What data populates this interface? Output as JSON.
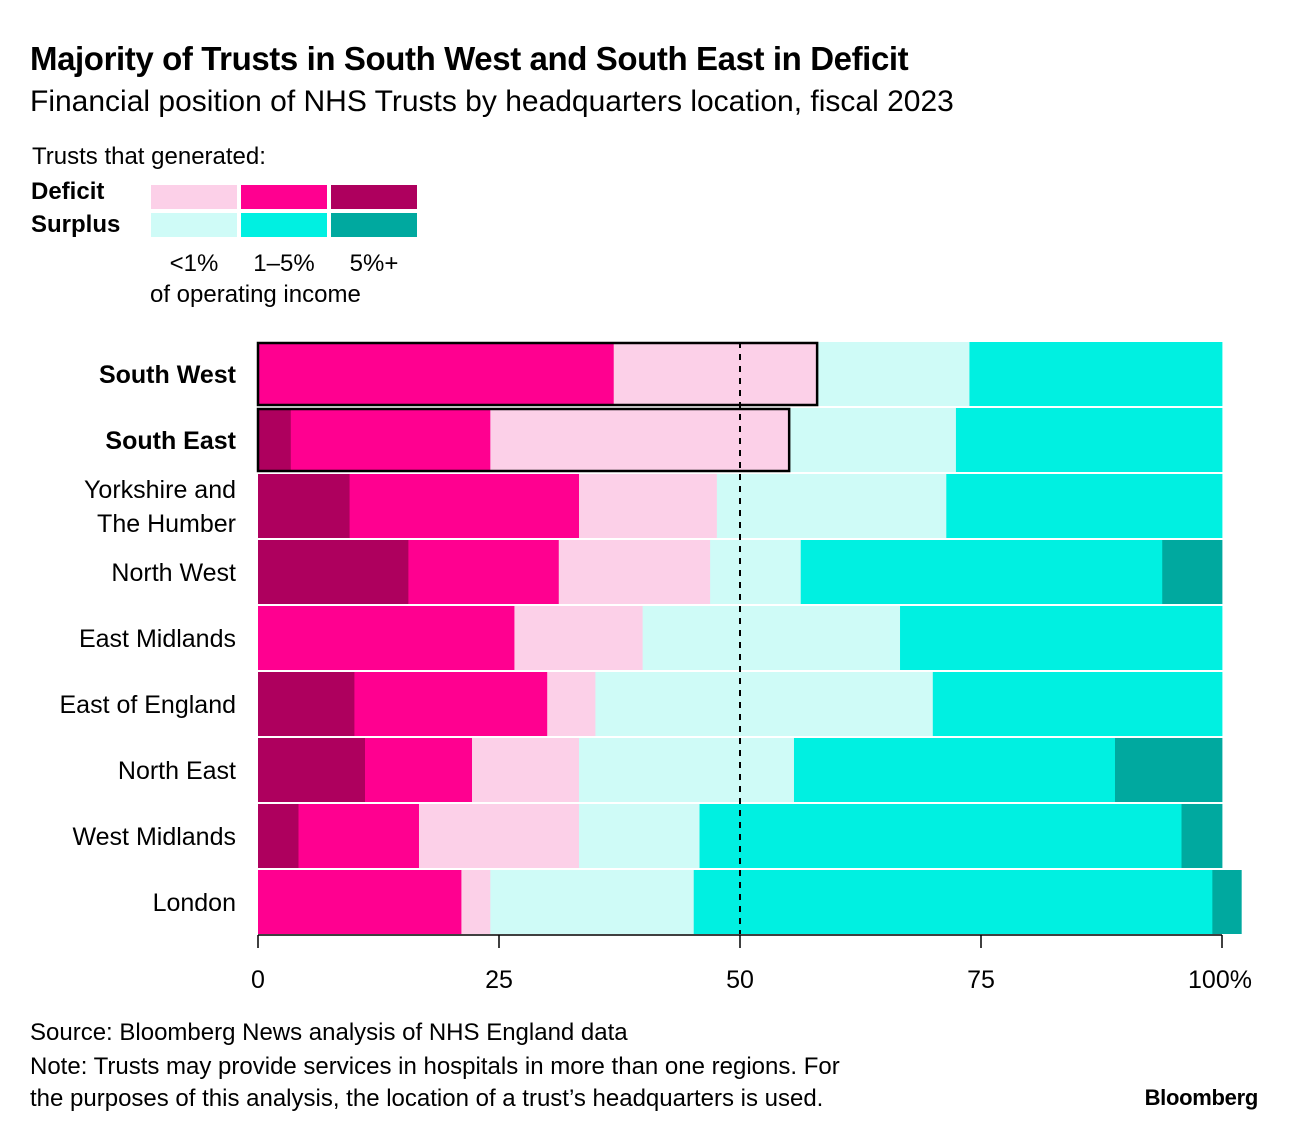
{
  "colors": {
    "deficit_lt1": "#FCD0E8",
    "deficit_1to5": "#FF0090",
    "deficit_5plus": "#AE005E",
    "surplus_lt1": "#CFFBF7",
    "surplus_1to5": "#00F0E1",
    "surplus_5plus": "#00A99F",
    "axis": "#000000"
  },
  "legend": {
    "heading": "Trusts that generated:",
    "deficit_label": "Deficit",
    "surplus_label": "Surplus",
    "ticks": [
      "<1%",
      "1–5%",
      "5%+"
    ],
    "unit": "of operating income"
  },
  "chart_data": {
    "type": "bar",
    "orientation": "horizontal",
    "stacked": true,
    "title": "Majority of Trusts in South West and South East in Deficit",
    "subtitle": "Financial position of NHS Trusts by headquarters location, fiscal 2023",
    "xlabel": "",
    "ylabel": "",
    "xlim": [
      0,
      100
    ],
    "x_ticks": [
      0,
      25,
      50,
      75,
      100
    ],
    "x_tick_labels": [
      "0",
      "25",
      "50",
      "75",
      "100%"
    ],
    "reference_line": 50,
    "highlighted_categories": [
      "South West",
      "South East"
    ],
    "categories": [
      "South West",
      "South East",
      "Yorkshire and The Humber",
      "North West",
      "East Midlands",
      "East of England",
      "North East",
      "West Midlands",
      "London"
    ],
    "category_lines": [
      [
        "South West"
      ],
      [
        "South East"
      ],
      [
        "Yorkshire and",
        "The Humber"
      ],
      [
        "North West"
      ],
      [
        "East Midlands"
      ],
      [
        "East of England"
      ],
      [
        "North East"
      ],
      [
        "West Midlands"
      ],
      [
        "London"
      ]
    ],
    "series": [
      {
        "name": "Deficit 5%+",
        "values": [
          0,
          3.4,
          9.5,
          15.6,
          0,
          10,
          11.1,
          4.2,
          0
        ]
      },
      {
        "name": "Deficit 1–5%",
        "values": [
          36.9,
          20.7,
          23.8,
          15.6,
          26.6,
          20,
          11.1,
          12.5,
          21.1
        ]
      },
      {
        "name": "Deficit <1%",
        "values": [
          21.1,
          31,
          14.3,
          15.7,
          13.3,
          5,
          11.1,
          16.6,
          3
        ]
      },
      {
        "name": "Surplus <1%",
        "values": [
          15.8,
          17.3,
          23.8,
          9.4,
          26.7,
          35,
          22.3,
          12.5,
          21.1
        ]
      },
      {
        "name": "Surplus 1–5%",
        "values": [
          26.2,
          27.6,
          28.6,
          37.5,
          33.4,
          30,
          33.3,
          50,
          53.8
        ]
      },
      {
        "name": "Surplus 5%+",
        "values": [
          0,
          0,
          0,
          6.2,
          0,
          0,
          11.1,
          4.2,
          3
        ]
      }
    ]
  },
  "footer": {
    "source": "Source: Bloomberg News analysis of NHS England data",
    "note_line1": "Note: Trusts may provide services in hospitals in more than one regions. For",
    "note_line2": "the purposes of this analysis, the location of a trust’s headquarters is used.",
    "brand": "Bloomberg"
  }
}
